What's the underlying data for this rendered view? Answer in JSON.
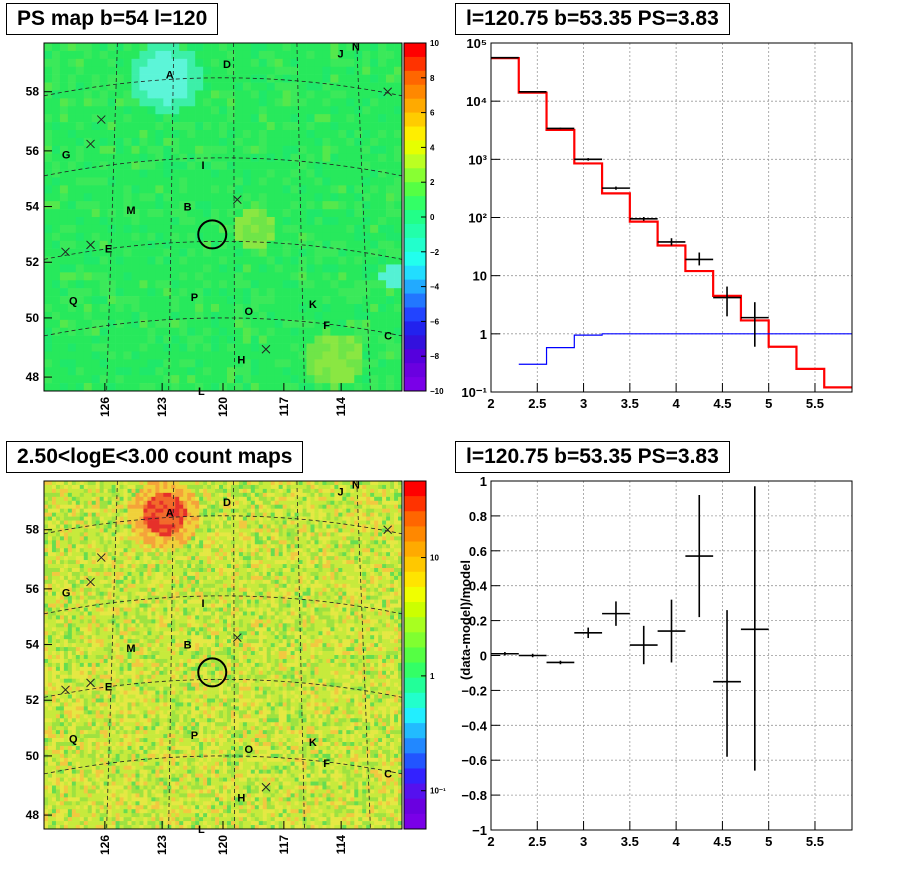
{
  "titles": {
    "top_left": "PS map b=54 l=120",
    "top_right": "l=120.75 b=53.35 PS=3.83",
    "bottom_left": "2.50<logE<3.00 count maps",
    "bottom_right": "l=120.75 b=53.35 PS=3.83"
  },
  "chart_data": [
    {
      "type": "heatmap",
      "panel": "top-left",
      "title": "PS map b=54 l=120",
      "color_scale": {
        "min": -10,
        "max": 10,
        "ticks": [
          "10",
          "8",
          "6",
          "4",
          "2",
          "0",
          "−2",
          "−4",
          "−6",
          "−8",
          "−10"
        ]
      },
      "ylabels": [
        "58",
        "56",
        "54",
        "52",
        "50",
        "48"
      ],
      "xlabels": [
        "126",
        "123",
        "120",
        "117",
        "114"
      ],
      "source_labels": [
        "A",
        "D",
        "N",
        "J",
        "G",
        "I",
        "B",
        "M",
        "E",
        "Q",
        "P",
        "O",
        "K",
        "F",
        "C",
        "H",
        "L"
      ],
      "colors": {
        "base": "#27e95c",
        "cool": "#58f5c5",
        "hot": "#f0e04a"
      }
    },
    {
      "type": "line",
      "panel": "top-right",
      "title": "l=120.75 b=53.35 PS=3.83",
      "yscale": "log",
      "xlim": [
        2,
        5.9
      ],
      "ylim": [
        0.1,
        100000
      ],
      "xticks": [
        "2",
        "2.5",
        "3",
        "3.5",
        "4",
        "4.5",
        "5",
        "5.5"
      ],
      "yticks": [
        "10⁻¹",
        "1",
        "10",
        "10²",
        "10³",
        "10⁴",
        "10⁵"
      ],
      "grid": true,
      "series": [
        {
          "kind": "step",
          "color": "#ff0000",
          "edges": [
            2.0,
            2.3,
            2.6,
            2.9,
            3.2,
            3.5,
            3.8,
            4.1,
            4.4,
            4.7,
            5.0,
            5.3,
            5.6,
            5.9
          ],
          "values": [
            55000,
            14000,
            3200,
            850,
            260,
            85,
            33,
            12,
            4.5,
            1.7,
            0.6,
            0.25,
            0.12
          ]
        },
        {
          "kind": "step",
          "color": "#0000ff",
          "edges": [
            2.3,
            2.6,
            2.9,
            3.2,
            5.9
          ],
          "values": [
            0.3,
            0.58,
            0.95,
            1.0
          ]
        },
        {
          "kind": "errorbar",
          "color": "#000000",
          "x": [
            2.15,
            2.45,
            2.75,
            3.05,
            3.35,
            3.65,
            3.95,
            4.25,
            4.55,
            4.85
          ],
          "y": [
            56000,
            14500,
            3400,
            1000,
            320,
            95,
            38,
            19,
            4.2,
            1.9
          ],
          "ylo": [
            55000,
            14200,
            3300,
            950,
            300,
            88,
            33,
            15,
            2.0,
            0.6
          ],
          "yhi": [
            57000,
            14800,
            3500,
            1050,
            340,
            102,
            44,
            25,
            6.5,
            3.5
          ]
        }
      ]
    },
    {
      "type": "heatmap",
      "panel": "bottom-left",
      "title": "2.50<logE<3.00 count maps",
      "color_scale": {
        "scale": "log",
        "ticks": [
          "10",
          "1",
          "10⁻¹"
        ]
      },
      "ylabels": [
        "58",
        "56",
        "54",
        "52",
        "50",
        "48"
      ],
      "xlabels": [
        "126",
        "123",
        "120",
        "117",
        "114"
      ],
      "source_labels": [
        "A",
        "D",
        "N",
        "J",
        "G",
        "I",
        "B",
        "M",
        "E",
        "Q",
        "P",
        "O",
        "K",
        "F",
        "C",
        "H",
        "L"
      ],
      "colors": {
        "base": "#c9ec3c",
        "hot": "#e83a2a"
      }
    },
    {
      "type": "scatter",
      "panel": "bottom-right",
      "title": "l=120.75 b=53.35 PS=3.83",
      "ylabel": "(data-model)/model",
      "xlim": [
        2,
        5.9
      ],
      "ylim": [
        -1,
        1
      ],
      "xticks": [
        "2",
        "2.5",
        "3",
        "3.5",
        "4",
        "4.5",
        "5",
        "5.5"
      ],
      "yticks": [
        "1",
        "0.8",
        "0.6",
        "0.4",
        "0.2",
        "0",
        "−0.2",
        "−0.4",
        "−0.6",
        "−0.8",
        "−1"
      ],
      "grid": true,
      "points": {
        "x": [
          2.15,
          2.45,
          2.75,
          3.05,
          3.35,
          3.65,
          3.95,
          4.25,
          4.55,
          4.85
        ],
        "y": [
          0.01,
          0.0,
          -0.04,
          0.13,
          0.24,
          0.06,
          0.14,
          0.57,
          -0.15,
          0.15
        ],
        "ylo": [
          0.0,
          -0.01,
          -0.05,
          0.1,
          0.17,
          -0.05,
          -0.04,
          0.22,
          -0.58,
          -0.66
        ],
        "yhi": [
          0.02,
          0.01,
          -0.03,
          0.16,
          0.31,
          0.17,
          0.32,
          0.92,
          0.26,
          0.97
        ]
      }
    }
  ]
}
